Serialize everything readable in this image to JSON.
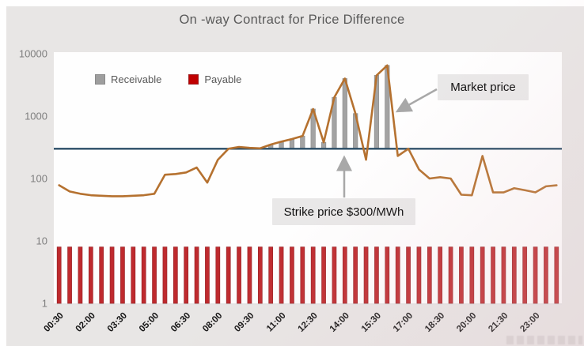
{
  "title": "On -way Contract for Price Difference",
  "legend": [
    {
      "label": "Receivable",
      "color": "#9e9e9e",
      "marker": "square-icon"
    },
    {
      "label": "Payable",
      "color": "#c00000",
      "marker": "square-icon"
    }
  ],
  "annotations": {
    "market_price_label": "Market price",
    "strike_price_label": "Strike price $300/MWh"
  },
  "colors": {
    "market_line": "#b5712f",
    "strike_line": "#2a4d66",
    "receivable_bar": "#a3a3a3",
    "payable_bar": "#bf2a2e",
    "arrow": "#a8a8a8",
    "background": "#e8e6e5",
    "plot_background": "#fefefe"
  },
  "chart_data": {
    "type": "combo",
    "title": "On -way Contract for Price Difference",
    "yscale": "log",
    "ylim": [
      1,
      10000
    ],
    "yticks": [
      1,
      10,
      100,
      1000,
      10000
    ],
    "strike_price": 300,
    "legend_position": "top-left-inside",
    "grid": false,
    "x": [
      "00:30",
      "01:00",
      "01:30",
      "02:00",
      "02:30",
      "03:00",
      "03:30",
      "04:00",
      "04:30",
      "05:00",
      "05:30",
      "06:00",
      "06:30",
      "07:00",
      "07:30",
      "08:00",
      "08:30",
      "09:00",
      "09:30",
      "10:00",
      "10:30",
      "11:00",
      "11:30",
      "12:00",
      "12:30",
      "13:00",
      "13:30",
      "14:00",
      "14:30",
      "15:00",
      "15:30",
      "16:00",
      "16:30",
      "17:00",
      "17:30",
      "18:00",
      "18:30",
      "19:00",
      "19:30",
      "20:00",
      "20:30",
      "21:00",
      "21:30",
      "22:00",
      "22:30",
      "23:00",
      "23:30",
      "24:00"
    ],
    "x_tick_labels": [
      "00:30",
      "02:00",
      "03:30",
      "05:00",
      "06:30",
      "08:00",
      "09:30",
      "11:00",
      "12:30",
      "14:00",
      "15:30",
      "17:00",
      "18:30",
      "20:00",
      "21:30",
      "23:00"
    ],
    "series": [
      {
        "name": "Market price",
        "type": "line",
        "values": [
          78,
          62,
          57,
          54,
          53,
          52,
          52,
          53,
          54,
          57,
          115,
          118,
          125,
          150,
          86,
          200,
          300,
          320,
          310,
          305,
          350,
          390,
          430,
          480,
          1300,
          380,
          2000,
          4000,
          1100,
          200,
          4500,
          6500,
          230,
          300,
          140,
          100,
          105,
          100,
          55,
          54,
          230,
          60,
          60,
          70,
          65,
          60,
          75,
          78
        ]
      },
      {
        "name": "Receivable",
        "type": "bar",
        "values": [
          null,
          null,
          null,
          null,
          null,
          null,
          null,
          null,
          null,
          null,
          null,
          null,
          null,
          null,
          null,
          null,
          null,
          320,
          310,
          305,
          350,
          390,
          430,
          480,
          1300,
          380,
          2000,
          4000,
          1100,
          null,
          4500,
          6500,
          null,
          null,
          null,
          null,
          null,
          null,
          null,
          null,
          null,
          null,
          null,
          null,
          null,
          null,
          null,
          null
        ]
      },
      {
        "name": "Payable",
        "type": "bar",
        "values": [
          8,
          8,
          8,
          8,
          8,
          8,
          8,
          8,
          8,
          8,
          8,
          8,
          8,
          8,
          8,
          8,
          8,
          8,
          8,
          8,
          8,
          8,
          8,
          8,
          8,
          8,
          8,
          8,
          8,
          8,
          8,
          8,
          8,
          8,
          8,
          8,
          8,
          8,
          8,
          8,
          8,
          8,
          8,
          8,
          8,
          8,
          8,
          8
        ]
      }
    ]
  }
}
